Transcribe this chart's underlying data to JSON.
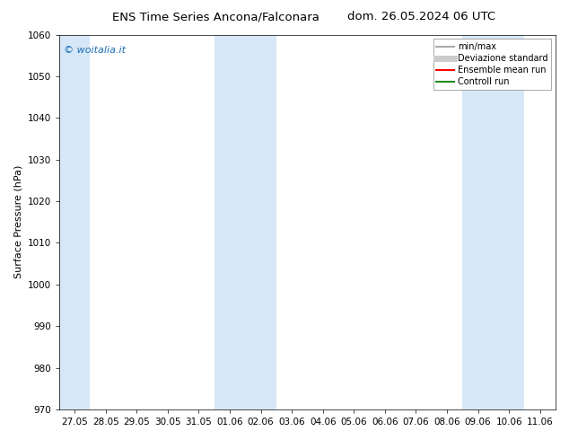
{
  "title_left": "ENS Time Series Ancona/Falconara",
  "title_right": "dom. 26.05.2024 06 UTC",
  "ylabel": "Surface Pressure (hPa)",
  "ylim": [
    970,
    1060
  ],
  "yticks": [
    970,
    980,
    990,
    1000,
    1010,
    1020,
    1030,
    1040,
    1050,
    1060
  ],
  "xtick_labels": [
    "27.05",
    "28.05",
    "29.05",
    "30.05",
    "31.05",
    "01.06",
    "02.06",
    "03.06",
    "04.06",
    "05.06",
    "06.06",
    "07.06",
    "08.06",
    "09.06",
    "10.06",
    "11.06"
  ],
  "background_color": "#ffffff",
  "plot_bg_color": "#ffffff",
  "shaded_band_color": "#d6e8f7",
  "shaded_columns": [
    0,
    5,
    6,
    13,
    14
  ],
  "watermark_text": "© woitalia.it",
  "watermark_color": "#1a6bb5",
  "legend_entries": [
    {
      "label": "min/max",
      "color": "#aaaaaa",
      "lw": 1.5
    },
    {
      "label": "Deviazione standard",
      "color": "#cccccc",
      "lw": 5
    },
    {
      "label": "Ensemble mean run",
      "color": "#ff0000",
      "lw": 1.5
    },
    {
      "label": "Controll run",
      "color": "#228B22",
      "lw": 1.5
    }
  ],
  "title_fontsize": 9.5,
  "axis_label_fontsize": 8,
  "tick_fontsize": 7.5,
  "watermark_fontsize": 8,
  "legend_fontsize": 7
}
